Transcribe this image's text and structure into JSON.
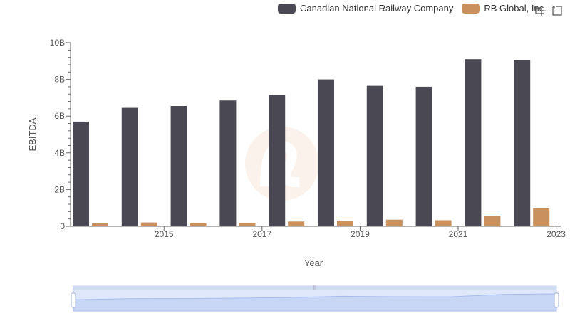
{
  "legend": {
    "items": [
      {
        "label": "Canadian National Railway Company",
        "color": "#4a4853"
      },
      {
        "label": "RB Global, Inc.",
        "color": "#c8915e"
      }
    ]
  },
  "toolbar": {
    "icons": [
      "zoom-icon",
      "restore-icon"
    ]
  },
  "chart_data": {
    "type": "bar",
    "xlabel": "Year",
    "ylabel": "EBITDA",
    "ylim": [
      0,
      10000000000
    ],
    "yticks": [
      "0",
      "2B",
      "4B",
      "6B",
      "8B",
      "10B"
    ],
    "xticks": [
      "2015",
      "2017",
      "2019",
      "2021",
      "2023"
    ],
    "categories": [
      "2014",
      "2015",
      "2016",
      "2017",
      "2018",
      "2019",
      "2020",
      "2021",
      "2022",
      "2023"
    ],
    "series": [
      {
        "name": "Canadian National Railway Company",
        "color": "#4a4853",
        "values": [
          5700000000,
          6450000000,
          6550000000,
          6850000000,
          7150000000,
          8000000000,
          7650000000,
          7600000000,
          9100000000,
          9050000000
        ]
      },
      {
        "name": "RB Global, Inc.",
        "color": "#c8915e",
        "values": [
          180000000,
          210000000,
          170000000,
          170000000,
          260000000,
          310000000,
          360000000,
          330000000,
          580000000,
          980000000
        ]
      }
    ],
    "grid": false,
    "legend_position": "top-right",
    "data_zoom": {
      "range": [
        0,
        100
      ]
    }
  }
}
